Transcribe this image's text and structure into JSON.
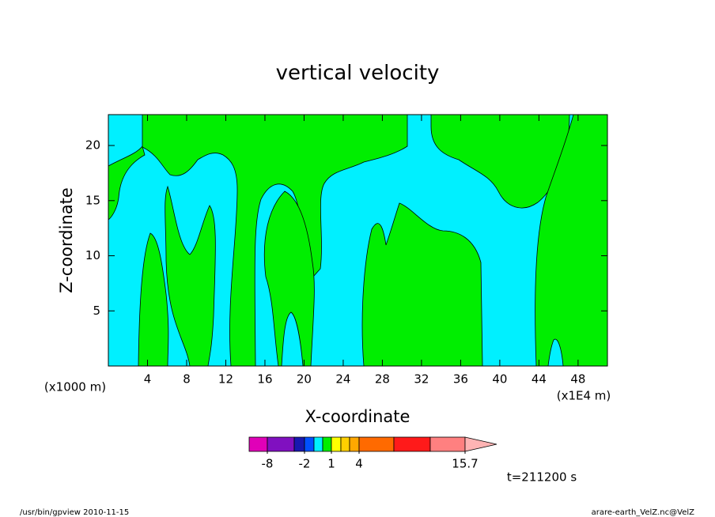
{
  "chart_data": {
    "type": "contour",
    "title": "vertical velocity",
    "xlabel": "X-coordinate",
    "ylabel": "Z-coordinate",
    "x_unit_left": "(x1000 m)",
    "x_unit_right": "(x1E4 m)",
    "xlim": [
      0,
      51
    ],
    "ylim": [
      0,
      22.8
    ],
    "xticks": [
      4,
      8,
      12,
      16,
      20,
      24,
      28,
      32,
      36,
      40,
      44,
      48
    ],
    "yticks": [
      5,
      10,
      15,
      20
    ],
    "colorbar": {
      "colors": [
        "#e000b8",
        "#8010c0",
        "#1818b0",
        "#0050ff",
        "#00f0ff",
        "#00ee00",
        "#ffff00",
        "#ffd000",
        "#ffa800",
        "#ff6a00",
        "#ff1a1a",
        "#ff8080",
        "#ffb4b4"
      ],
      "ticks": [
        -8,
        -2,
        1,
        4,
        15.7
      ]
    },
    "time_label": "t=211200 s",
    "footer_left": "/usr/bin/gpview   2010-11-15",
    "footer_right": "arare-earth_VelZ.nc@VelZ"
  }
}
